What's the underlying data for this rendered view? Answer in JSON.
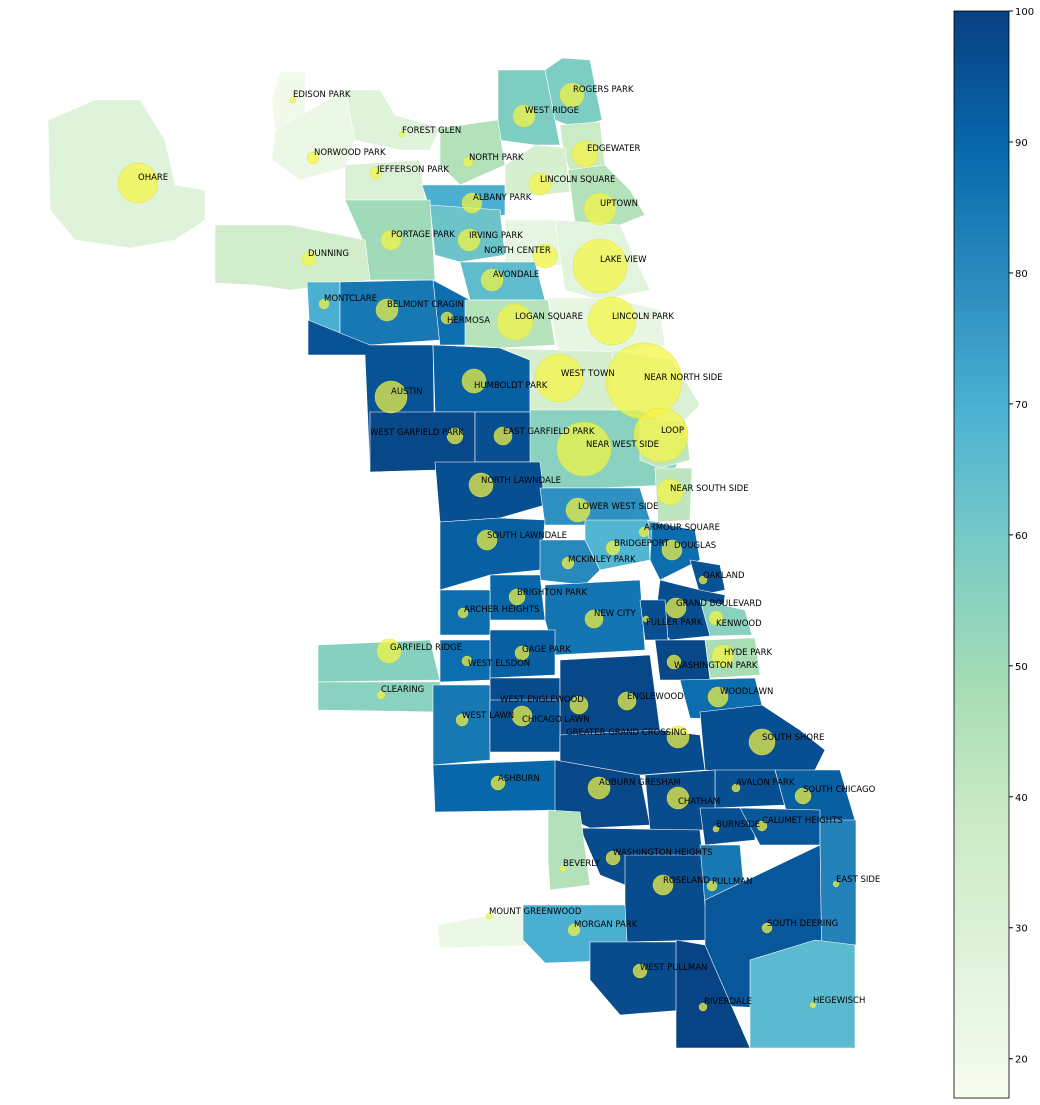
{
  "chart_data": {
    "type": "choropleth",
    "title": "",
    "bubble_color": "#f5f542",
    "colorbar": {
      "min": 17,
      "max": 100,
      "ticks": [
        20,
        30,
        40,
        50,
        60,
        70,
        80,
        90,
        100
      ],
      "tick_labels": [
        "20",
        "30",
        "40",
        "50",
        "60",
        "70",
        "80",
        "90",
        "100"
      ],
      "colormap": [
        "#f7fcf0",
        "#e0f3db",
        "#ccebc5",
        "#a8ddb5",
        "#7bccc4",
        "#4eb3d3",
        "#2b8cbe",
        "#0868ac",
        "#084081"
      ]
    },
    "areas": [
      {
        "name": "EDISON PARK",
        "value": 20,
        "bubble": 3
      },
      {
        "name": "ROGERS PARK",
        "value": 58,
        "bubble": 12
      },
      {
        "name": "WEST RIDGE",
        "value": 58,
        "bubble": 11
      },
      {
        "name": "FOREST GLEN",
        "value": 28,
        "bubble": 3
      },
      {
        "name": "NORWOOD PARK",
        "value": 22,
        "bubble": 6
      },
      {
        "name": "NORTH PARK",
        "value": 45,
        "bubble": 5
      },
      {
        "name": "EDGEWATER",
        "value": 38,
        "bubble": 13
      },
      {
        "name": "JEFFERSON PARK",
        "value": 30,
        "bubble": 6
      },
      {
        "name": "OHARE",
        "value": 28,
        "bubble": 20
      },
      {
        "name": "LINCOLN SQUARE",
        "value": 32,
        "bubble": 11
      },
      {
        "name": "ALBANY PARK",
        "value": 70,
        "bubble": 10
      },
      {
        "name": "UPTOWN",
        "value": 45,
        "bubble": 16
      },
      {
        "name": "PORTAGE PARK",
        "value": 50,
        "bubble": 10
      },
      {
        "name": "IRVING PARK",
        "value": 62,
        "bubble": 11
      },
      {
        "name": "NORTH CENTER",
        "value": 24,
        "bubble": 12
      },
      {
        "name": "LAKE VIEW",
        "value": 26,
        "bubble": 27
      },
      {
        "name": "DUNNING",
        "value": 35,
        "bubble": 7
      },
      {
        "name": "AVONDALE",
        "value": 65,
        "bubble": 11
      },
      {
        "name": "MONTCLARE",
        "value": 70,
        "bubble": 5
      },
      {
        "name": "BELMONT CRAGIN",
        "value": 85,
        "bubble": 11
      },
      {
        "name": "HERMOSA",
        "value": 88,
        "bubble": 6
      },
      {
        "name": "LOGAN SQUARE",
        "value": 44,
        "bubble": 18
      },
      {
        "name": "LINCOLN PARK",
        "value": 24,
        "bubble": 24
      },
      {
        "name": "AUSTIN",
        "value": 95,
        "bubble": 16
      },
      {
        "name": "HUMBOLDT PARK",
        "value": 92,
        "bubble": 12
      },
      {
        "name": "WEST TOWN",
        "value": 32,
        "bubble": 24
      },
      {
        "name": "NEAR NORTH SIDE",
        "value": 30,
        "bubble": 38
      },
      {
        "name": "WEST GARFIELD PARK",
        "value": 98,
        "bubble": 8
      },
      {
        "name": "EAST GARFIELD PARK",
        "value": 96,
        "bubble": 9
      },
      {
        "name": "NEAR WEST SIDE",
        "value": 55,
        "bubble": 27
      },
      {
        "name": "LOOP",
        "value": 42,
        "bubble": 27
      },
      {
        "name": "NORTH LAWNDALE",
        "value": 96,
        "bubble": 12
      },
      {
        "name": "NEAR SOUTH SIDE",
        "value": 42,
        "bubble": 13
      },
      {
        "name": "LOWER WEST SIDE",
        "value": 78,
        "bubble": 12
      },
      {
        "name": "ARMOUR SQUARE",
        "value": 70,
        "bubble": 5
      },
      {
        "name": "BRIDGEPORT",
        "value": 68,
        "bubble": 7
      },
      {
        "name": "DOUGLAS",
        "value": 88,
        "bubble": 10
      },
      {
        "name": "SOUTH LAWNDALE",
        "value": 92,
        "bubble": 10
      },
      {
        "name": "MCKINLEY PARK",
        "value": 80,
        "bubble": 6
      },
      {
        "name": "OAKLAND",
        "value": 95,
        "bubble": 4
      },
      {
        "name": "BRIGHTON PARK",
        "value": 90,
        "bubble": 8
      },
      {
        "name": "GRAND BOULEVARD",
        "value": 96,
        "bubble": 10
      },
      {
        "name": "ARCHER HEIGHTS",
        "value": 88,
        "bubble": 5
      },
      {
        "name": "NEW CITY",
        "value": 86,
        "bubble": 9
      },
      {
        "name": "FULLER PARK",
        "value": 96,
        "bubble": 3
      },
      {
        "name": "KENWOOD",
        "value": 55,
        "bubble": 7
      },
      {
        "name": "GARFIELD RIDGE",
        "value": 56,
        "bubble": 12
      },
      {
        "name": "GAGE PARK",
        "value": 92,
        "bubble": 7
      },
      {
        "name": "HYDE PARK",
        "value": 48,
        "bubble": 11
      },
      {
        "name": "WEST ELSDON",
        "value": 88,
        "bubble": 5
      },
      {
        "name": "WASHINGTON PARK",
        "value": 98,
        "bubble": 7
      },
      {
        "name": "CLEARING",
        "value": 55,
        "bubble": 4
      },
      {
        "name": "WEST ENGLEWOOD",
        "value": 97,
        "bubble": 9
      },
      {
        "name": "ENGLEWOOD",
        "value": 98,
        "bubble": 9
      },
      {
        "name": "WOODLAWN",
        "value": 88,
        "bubble": 10
      },
      {
        "name": "WEST LAWN",
        "value": 85,
        "bubble": 6
      },
      {
        "name": "CHICAGO LAWN",
        "value": 95,
        "bubble": 10
      },
      {
        "name": "GREATER GRAND CROSSING",
        "value": 97,
        "bubble": 11
      },
      {
        "name": "SOUTH SHORE",
        "value": 96,
        "bubble": 13
      },
      {
        "name": "ASHBURN",
        "value": 90,
        "bubble": 7
      },
      {
        "name": "AUBURN GRESHAM",
        "value": 98,
        "bubble": 11
      },
      {
        "name": "AVALON PARK",
        "value": 96,
        "bubble": 4
      },
      {
        "name": "SOUTH CHICAGO",
        "value": 92,
        "bubble": 8
      },
      {
        "name": "CHATHAM",
        "value": 97,
        "bubble": 11
      },
      {
        "name": "BURNSIDE",
        "value": 96,
        "bubble": 3
      },
      {
        "name": "CALUMET HEIGHTS",
        "value": 94,
        "bubble": 5
      },
      {
        "name": "WASHINGTON HEIGHTS",
        "value": 97,
        "bubble": 7
      },
      {
        "name": "BEVERLY",
        "value": 45,
        "bubble": 3
      },
      {
        "name": "ROSELAND",
        "value": 97,
        "bubble": 10
      },
      {
        "name": "PULLMAN",
        "value": 85,
        "bubble": 5
      },
      {
        "name": "EAST SIDE",
        "value": 82,
        "bubble": 3
      },
      {
        "name": "MOUNT GREENWOOD",
        "value": 22,
        "bubble": 3
      },
      {
        "name": "MORGAN PARK",
        "value": 70,
        "bubble": 6
      },
      {
        "name": "SOUTH DEERING",
        "value": 94,
        "bubble": 5
      },
      {
        "name": "WEST PULLMAN",
        "value": 97,
        "bubble": 7
      },
      {
        "name": "RIVERDALE",
        "value": 99,
        "bubble": 4
      },
      {
        "name": "HEGEWISCH",
        "value": 66,
        "bubble": 3
      }
    ]
  }
}
